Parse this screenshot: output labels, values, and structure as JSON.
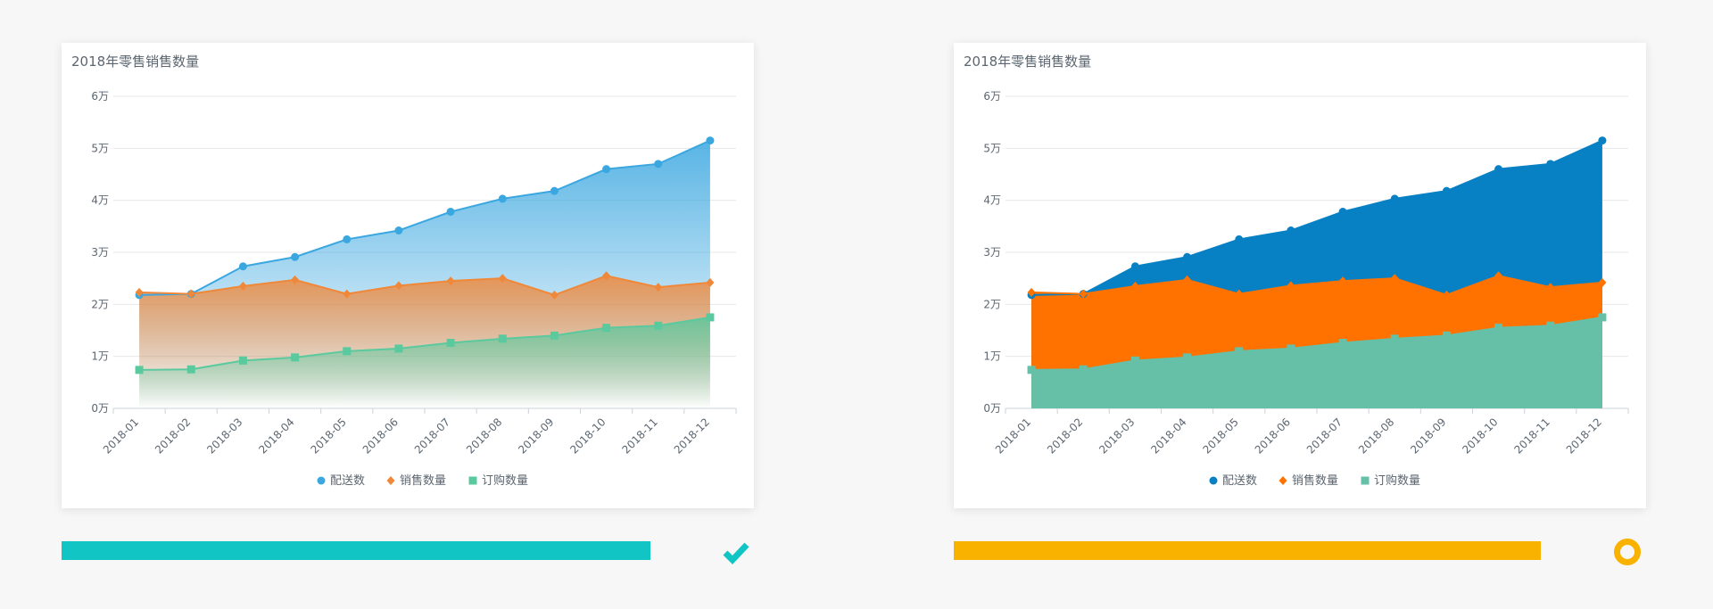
{
  "panels": [
    {
      "chart_data": {
        "type": "area",
        "style": "gradient",
        "title": "2018年零售销售数量",
        "categories": [
          "2018-01",
          "2018-02",
          "2018-03",
          "2018-04",
          "2018-05",
          "2018-06",
          "2018-07",
          "2018-08",
          "2018-09",
          "2018-10",
          "2018-11",
          "2018-12"
        ],
        "yticks": [
          "0万",
          "1万",
          "2万",
          "3万",
          "4万",
          "5万",
          "6万"
        ],
        "ylim": [
          0,
          60000
        ],
        "grid": true,
        "legend_position": "bottom",
        "series": [
          {
            "name": "配送数",
            "marker": "circle",
            "color": "#3ba7e0",
            "values": [
              21800,
              22000,
              27300,
              29100,
              32500,
              34200,
              37800,
              40300,
              41800,
              46000,
              47000,
              51500
            ]
          },
          {
            "name": "销售数量",
            "marker": "diamond",
            "color": "#f0883a",
            "values": [
              22300,
              22000,
              23500,
              24700,
              22000,
              23600,
              24500,
              25000,
              21800,
              25500,
              23300,
              24200
            ]
          },
          {
            "name": "订购数量",
            "marker": "square",
            "color": "#5bc99e",
            "values": [
              7400,
              7500,
              9200,
              9800,
              11000,
              11500,
              12600,
              13400,
              14000,
              15500,
              15900,
              17500
            ]
          }
        ]
      },
      "progress": 0.92,
      "progress_color": "#12c5c5",
      "status_icon": "check-icon",
      "status_color": "#12c5c5"
    },
    {
      "chart_data": {
        "type": "area",
        "style": "solid",
        "title": "2018年零售销售数量",
        "categories": [
          "2018-01",
          "2018-02",
          "2018-03",
          "2018-04",
          "2018-05",
          "2018-06",
          "2018-07",
          "2018-08",
          "2018-09",
          "2018-10",
          "2018-11",
          "2018-12"
        ],
        "yticks": [
          "0万",
          "1万",
          "2万",
          "3万",
          "4万",
          "5万",
          "6万"
        ],
        "ylim": [
          0,
          60000
        ],
        "grid": true,
        "legend_position": "bottom",
        "series": [
          {
            "name": "配送数",
            "marker": "circle",
            "color": "#0780c4",
            "values": [
              21800,
              22000,
              27300,
              29100,
              32500,
              34200,
              37800,
              40300,
              41800,
              46000,
              47000,
              51500
            ]
          },
          {
            "name": "销售数量",
            "marker": "diamond",
            "color": "#ff7200",
            "values": [
              22300,
              22000,
              23500,
              24700,
              22000,
              23600,
              24500,
              25000,
              21800,
              25500,
              23300,
              24200
            ]
          },
          {
            "name": "订购数量",
            "marker": "square",
            "color": "#66c0a7",
            "values": [
              7400,
              7500,
              9200,
              9800,
              11000,
              11500,
              12600,
              13400,
              14000,
              15500,
              15900,
              17500
            ]
          }
        ]
      },
      "progress": 0.92,
      "progress_color": "#f9b200",
      "status_icon": "ring-icon",
      "status_color": "#f9b200"
    }
  ]
}
